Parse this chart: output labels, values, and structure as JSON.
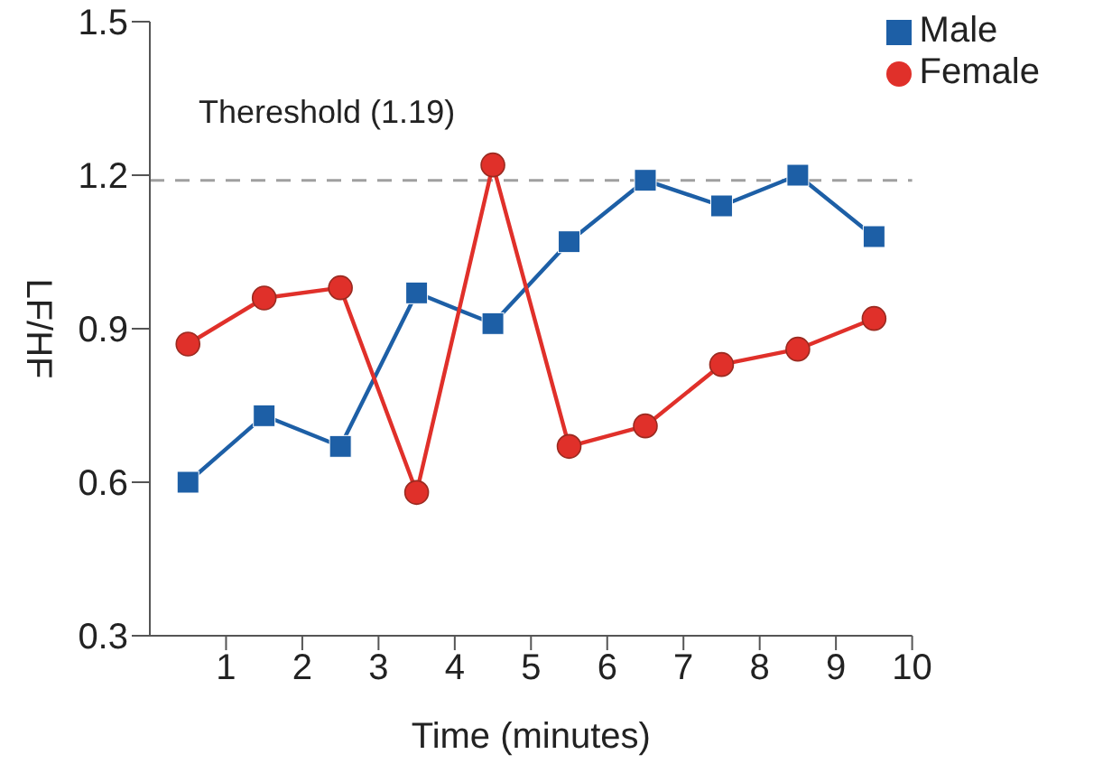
{
  "chart_data": {
    "type": "line",
    "xlabel": "Time (minutes)",
    "ylabel": "LF/HF",
    "x": [
      0.5,
      1.5,
      2.5,
      3.5,
      4.5,
      5.5,
      6.5,
      7.5,
      8.5,
      9.5
    ],
    "series": [
      {
        "name": "Male",
        "color": "#1d5fa6",
        "marker": "square",
        "values": [
          0.6,
          0.73,
          0.67,
          0.97,
          0.91,
          1.07,
          1.19,
          1.14,
          1.2,
          1.08
        ]
      },
      {
        "name": "Female",
        "color": "#e0302a",
        "marker": "circle",
        "values": [
          0.87,
          0.96,
          0.98,
          0.58,
          1.22,
          0.67,
          0.71,
          0.83,
          0.86,
          0.92
        ]
      }
    ],
    "xlim": [
      0,
      10
    ],
    "xticks": [
      1,
      2,
      3,
      4,
      5,
      6,
      7,
      8,
      9,
      10
    ],
    "ylim": [
      0.3,
      1.5
    ],
    "yticks": [
      0.3,
      0.6,
      0.9,
      1.2,
      1.5
    ],
    "ref_lines": [
      {
        "axis": "y",
        "value": 1.19,
        "label": "Thereshold (1.19)",
        "color": "#a0a0a0",
        "line_style": "dashed"
      }
    ],
    "grid": false,
    "legend": "top right",
    "line_style": "solid"
  }
}
